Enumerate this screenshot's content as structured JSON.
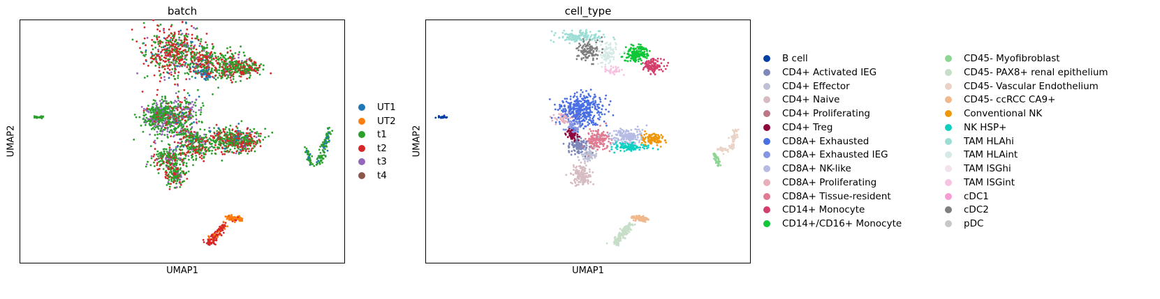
{
  "chart_data": [
    {
      "type": "scatter",
      "title": "batch",
      "xlabel": "UMAP1",
      "ylabel": "UMAP2",
      "xlim": [
        0,
        100
      ],
      "ylim": [
        0,
        100
      ],
      "legend_position": "right",
      "series": [
        {
          "name": "UT1",
          "color": "#1f77b4"
        },
        {
          "name": "UT2",
          "color": "#ff7f0e"
        },
        {
          "name": "t1",
          "color": "#2ca02c"
        },
        {
          "name": "t2",
          "color": "#d62728"
        },
        {
          "name": "t3",
          "color": "#9467bd"
        },
        {
          "name": "t4",
          "color": "#8c564b"
        }
      ],
      "clusters": [
        {
          "x": 48,
          "y": 87,
          "sx": 4.5,
          "sy": 5.5,
          "n": 500,
          "mix": [
            0.05,
            0,
            0.4,
            0.45,
            0.1,
            0
          ]
        },
        {
          "x": 57,
          "y": 83,
          "sx": 2.5,
          "sy": 3.5,
          "n": 180,
          "mix": [
            0.05,
            0,
            0.45,
            0.45,
            0.05,
            0
          ]
        },
        {
          "x": 65,
          "y": 81,
          "sx": 3.0,
          "sy": 3.0,
          "n": 260,
          "mix": [
            0,
            0,
            0.6,
            0.35,
            0.05,
            0
          ]
        },
        {
          "x": 70,
          "y": 80,
          "sx": 2.0,
          "sy": 1.5,
          "n": 120,
          "mix": [
            0,
            0,
            0.5,
            0.45,
            0.05,
            0
          ]
        },
        {
          "x": 57,
          "y": 78,
          "sx": 1.2,
          "sy": 1.2,
          "n": 60,
          "mix": [
            0.85,
            0,
            0.1,
            0.05,
            0,
            0
          ]
        },
        {
          "x": 48,
          "y": 60,
          "sx": 4.0,
          "sy": 4.0,
          "n": 450,
          "mix": [
            0.05,
            0,
            0.55,
            0.15,
            0.25,
            0
          ]
        },
        {
          "x": 43,
          "y": 60,
          "sx": 2.5,
          "sy": 3.0,
          "n": 200,
          "mix": [
            0,
            0,
            0.75,
            0.05,
            0.2,
            0
          ]
        },
        {
          "x": 46,
          "y": 43,
          "sx": 2.5,
          "sy": 2.5,
          "n": 200,
          "mix": [
            0,
            0,
            0.6,
            0.25,
            0.15,
            0
          ]
        },
        {
          "x": 54,
          "y": 48,
          "sx": 3.0,
          "sy": 2.5,
          "n": 220,
          "mix": [
            0.05,
            0,
            0.6,
            0.3,
            0.05,
            0
          ]
        },
        {
          "x": 65,
          "y": 51,
          "sx": 4.0,
          "sy": 2.5,
          "n": 330,
          "mix": [
            0.1,
            0,
            0.5,
            0.4,
            0,
            0
          ]
        },
        {
          "x": 69,
          "y": 50,
          "sx": 2.5,
          "sy": 2.0,
          "n": 150,
          "mix": [
            0,
            0,
            0.4,
            0.5,
            0.1,
            0
          ]
        },
        {
          "x": 48,
          "y": 36,
          "sx": 1.5,
          "sy": 2.5,
          "n": 140,
          "mix": [
            0,
            0,
            0.55,
            0.35,
            0.1,
            0
          ]
        },
        {
          "x": 5.5,
          "y": 60,
          "sx": 0.8,
          "sy": 0.2,
          "n": 25,
          "mix": [
            0,
            0,
            1,
            0,
            0,
            0
          ]
        }
      ],
      "strands": [
        {
          "x1": 64,
          "y1": 19,
          "x2": 68,
          "y2": 18,
          "w": 0.5,
          "n": 120,
          "mix": [
            0,
            0.95,
            0,
            0.05,
            0,
            0
          ]
        },
        {
          "x1": 58,
          "y1": 8,
          "x2": 63,
          "y2": 16,
          "w": 0.7,
          "n": 140,
          "mix": [
            0,
            0.25,
            0,
            0.75,
            0,
            0
          ]
        },
        {
          "x1": 92,
          "y1": 41,
          "x2": 95,
          "y2": 55,
          "w": 0.6,
          "n": 90,
          "mix": [
            0.25,
            0,
            0.75,
            0,
            0,
            0
          ]
        },
        {
          "x1": 88,
          "y1": 47,
          "x2": 90,
          "y2": 40,
          "w": 0.4,
          "n": 40,
          "mix": [
            0.3,
            0,
            0.7,
            0,
            0,
            0
          ]
        },
        {
          "x1": 45,
          "y1": 65,
          "x2": 40,
          "y2": 58,
          "w": 1.5,
          "n": 70,
          "mix": [
            0,
            0,
            0.8,
            0,
            0.2,
            0
          ]
        },
        {
          "x1": 50,
          "y1": 55,
          "x2": 56,
          "y2": 50,
          "w": 1.0,
          "n": 60,
          "mix": [
            0,
            0,
            0.6,
            0.3,
            0.1,
            0
          ]
        }
      ]
    },
    {
      "type": "scatter",
      "title": "cell_type",
      "xlabel": "UMAP1",
      "ylabel": "UMAP2",
      "xlim": [
        0,
        100
      ],
      "ylim": [
        0,
        100
      ],
      "legend_position": "right",
      "series": [
        {
          "name": "B cell",
          "color": "#023fa5"
        },
        {
          "name": "CD4+ Activated IEG",
          "color": "#7d87b9"
        },
        {
          "name": "CD4+ Effector",
          "color": "#bec1d4"
        },
        {
          "name": "CD4+ Naive",
          "color": "#d6bcc0"
        },
        {
          "name": "CD4+ Proliferating",
          "color": "#bb7784"
        },
        {
          "name": "CD4+ Treg",
          "color": "#8e063b"
        },
        {
          "name": "CD8A+ Exhausted",
          "color": "#4a6fe3"
        },
        {
          "name": "CD8A+ Exhausted IEG",
          "color": "#8595e1"
        },
        {
          "name": "CD8A+ NK-like",
          "color": "#b5bbe3"
        },
        {
          "name": "CD8A+ Proliferating",
          "color": "#e6afb9"
        },
        {
          "name": "CD8A+ Tissue-resident",
          "color": "#e07b91"
        },
        {
          "name": "CD14+ Monocyte",
          "color": "#d33f6a"
        },
        {
          "name": "CD14+/CD16+ Monocyte",
          "color": "#11c638"
        },
        {
          "name": "CD45- Myofibroblast",
          "color": "#8dd593"
        },
        {
          "name": "CD45- PAX8+ renal epithelium",
          "color": "#c6dec7"
        },
        {
          "name": "CD45- Vascular Endothelium",
          "color": "#ead3c6"
        },
        {
          "name": "CD45- ccRCC CA9+",
          "color": "#f0b98d"
        },
        {
          "name": "Conventional NK",
          "color": "#ef9708"
        },
        {
          "name": "NK HSP+",
          "color": "#0fcfc0"
        },
        {
          "name": "TAM HLAhi",
          "color": "#9cded6"
        },
        {
          "name": "TAM HLAint",
          "color": "#d5eae7"
        },
        {
          "name": "TAM ISGhi",
          "color": "#f3e1eb"
        },
        {
          "name": "TAM ISGint",
          "color": "#f6c4e1"
        },
        {
          "name": "cDC1",
          "color": "#f79cd4"
        },
        {
          "name": "cDC2",
          "color": "#7f7f7f"
        },
        {
          "name": "pDC",
          "color": "#c7c7c7"
        }
      ],
      "clusters": [
        {
          "x": 5.5,
          "y": 60,
          "sx": 0.8,
          "sy": 0.2,
          "n": 25,
          "c": 0
        },
        {
          "x": 48,
          "y": 63,
          "sx": 3.2,
          "sy": 3.2,
          "n": 380,
          "c": 6
        },
        {
          "x": 45,
          "y": 56,
          "sx": 1.2,
          "sy": 1.5,
          "n": 60,
          "c": 7
        },
        {
          "x": 43,
          "y": 60,
          "sx": 2.0,
          "sy": 1.2,
          "n": 60,
          "c": 9
        },
        {
          "x": 47,
          "y": 48,
          "sx": 1.8,
          "sy": 1.8,
          "n": 120,
          "c": 1
        },
        {
          "x": 50,
          "y": 45,
          "sx": 1.5,
          "sy": 1.5,
          "n": 70,
          "c": 2
        },
        {
          "x": 48,
          "y": 36,
          "sx": 1.4,
          "sy": 2.2,
          "n": 140,
          "c": 3
        },
        {
          "x": 45,
          "y": 53,
          "sx": 1.0,
          "sy": 1.2,
          "n": 60,
          "c": 5
        },
        {
          "x": 53,
          "y": 51,
          "sx": 1.8,
          "sy": 2.0,
          "n": 150,
          "c": 10
        },
        {
          "x": 62,
          "y": 52,
          "sx": 2.6,
          "sy": 1.6,
          "n": 170,
          "c": 8
        },
        {
          "x": 63,
          "y": 48,
          "sx": 2.6,
          "sy": 0.9,
          "n": 110,
          "c": 18
        },
        {
          "x": 70,
          "y": 51,
          "sx": 1.6,
          "sy": 1.1,
          "n": 120,
          "c": 17
        },
        {
          "x": 47,
          "y": 93,
          "sx": 3.5,
          "sy": 1.2,
          "n": 150,
          "c": 19
        },
        {
          "x": 50,
          "y": 87,
          "sx": 1.8,
          "sy": 2.0,
          "n": 120,
          "c": 24
        },
        {
          "x": 56,
          "y": 86,
          "sx": 1.6,
          "sy": 2.5,
          "n": 80,
          "c": 20
        },
        {
          "x": 58,
          "y": 79,
          "sx": 1.2,
          "sy": 0.8,
          "n": 40,
          "c": 22
        },
        {
          "x": 65,
          "y": 86,
          "sx": 1.8,
          "sy": 1.8,
          "n": 180,
          "c": 12
        },
        {
          "x": 70,
          "y": 81,
          "sx": 1.6,
          "sy": 1.3,
          "n": 110,
          "c": 11
        }
      ],
      "strands": [
        {
          "x1": 64,
          "y1": 19,
          "x2": 68,
          "y2": 18,
          "w": 0.5,
          "n": 100,
          "c": 16
        },
        {
          "x1": 58,
          "y1": 8,
          "x2": 63,
          "y2": 16,
          "w": 0.7,
          "n": 140,
          "c": 14
        },
        {
          "x1": 94,
          "y1": 47,
          "x2": 95.5,
          "y2": 55,
          "w": 0.5,
          "n": 60,
          "c": 15
        },
        {
          "x1": 89,
          "y1": 45,
          "x2": 90,
          "y2": 40,
          "w": 0.4,
          "n": 40,
          "c": 13
        },
        {
          "x1": 90,
          "y1": 47,
          "x2": 93,
          "y2": 46,
          "w": 0.4,
          "n": 25,
          "c": 15
        }
      ]
    }
  ]
}
